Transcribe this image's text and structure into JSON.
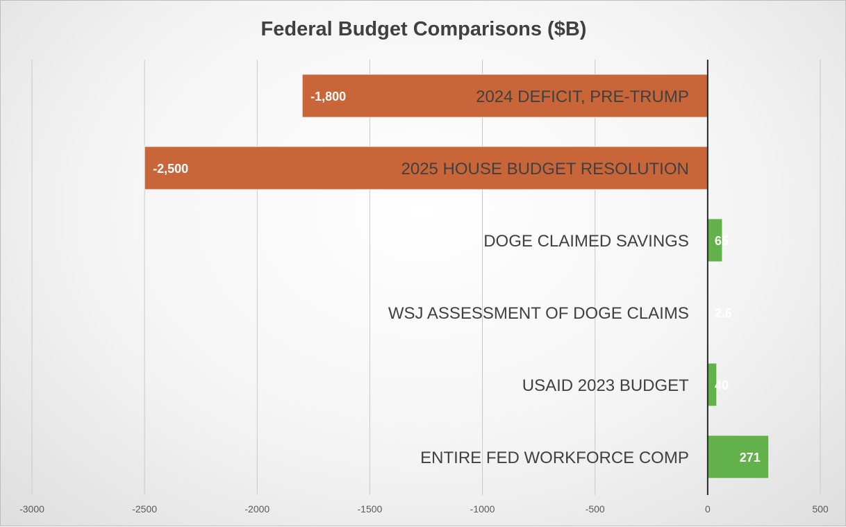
{
  "chart_data": {
    "type": "bar",
    "orientation": "horizontal",
    "title": "Federal Budget Comparisons ($B)",
    "xlabel": "",
    "ylabel": "",
    "xlim": [
      -3000,
      500
    ],
    "x_ticks": [
      "-3000",
      "-2500",
      "-2000",
      "-1500",
      "-1000",
      "-500",
      "0",
      "500"
    ],
    "x_tick_values": [
      -3000,
      -2500,
      -2000,
      -1500,
      -1000,
      -500,
      0,
      500
    ],
    "grid": true,
    "legend": "none",
    "categories": [
      "2024 DEFICIT, PRE-TRUMP",
      "2025 HOUSE BUDGET RESOLUTION",
      "DOGE CLAIMED SAVINGS",
      "WSJ ASSESSMENT OF DOGE CLAIMS",
      "USAID 2023 BUDGET",
      "ENTIRE FED WORKFORCE COMP"
    ],
    "values": [
      -1800,
      -2500,
      65,
      2.6,
      40,
      271
    ],
    "data_labels": [
      "-1,800",
      "-2,500",
      "65",
      "2.6",
      "40",
      "271"
    ],
    "colors": {
      "negative": "#c8663a",
      "positive": "#63b14b"
    }
  }
}
